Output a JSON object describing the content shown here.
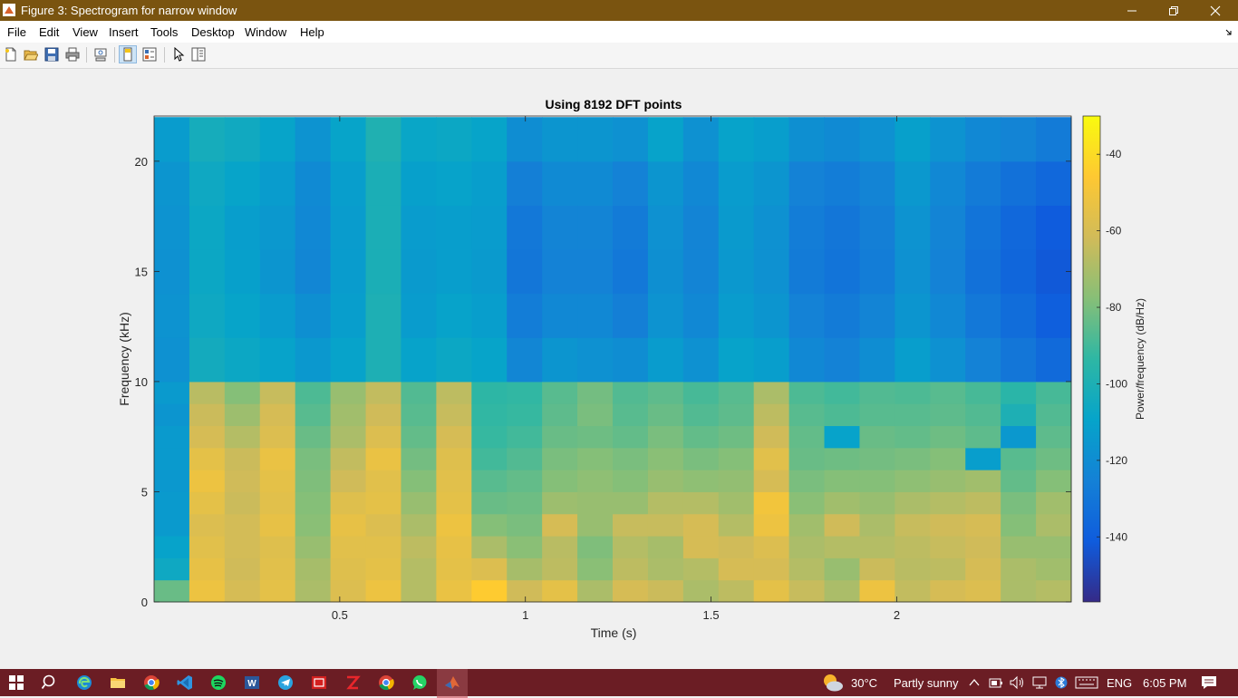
{
  "window": {
    "title": "Figure 3: Spectrogram for narrow window",
    "controls": [
      "minimize",
      "restore",
      "close"
    ]
  },
  "menubar": {
    "items": [
      "File",
      "Edit",
      "View",
      "Insert",
      "Tools",
      "Desktop",
      "Window",
      "Help"
    ]
  },
  "toolbar": {
    "icons": [
      "new-figure-icon",
      "open-file-icon",
      "save-icon",
      "print-icon",
      "link-plot-icon",
      "hide-plot-tools-icon",
      "show-plot-tools-icon",
      "edit-plot-pointer-icon",
      "open-property-inspector-icon"
    ]
  },
  "chart_data": {
    "type": "heatmap",
    "title": "Using 8192 DFT points",
    "xlabel": "Time (s)",
    "ylabel": "Frequency (kHz)",
    "colorbar_label": "Power/frequency (dB/Hz)",
    "xlim": [
      0.0,
      2.47
    ],
    "ylim": [
      0,
      22.05
    ],
    "xticks": [
      0.5,
      1,
      1.5,
      2
    ],
    "xtick_labels": [
      "0.5",
      "1",
      "1.5",
      "2"
    ],
    "yticks": [
      0,
      5,
      10,
      15,
      20
    ],
    "ytick_labels": [
      "0",
      "5",
      "10",
      "15",
      "20"
    ],
    "clim": [
      -157,
      -30
    ],
    "cticks": [
      -40,
      -60,
      -80,
      -100,
      -120,
      -140
    ],
    "ctick_labels": [
      "-40",
      "-60",
      "-80",
      "-100",
      "-120",
      "-140"
    ],
    "colormap": "parula",
    "time_frames": [
      0.0475,
      0.1425,
      0.2375,
      0.3325,
      0.4275,
      0.5225,
      0.6175,
      0.7125,
      0.8075,
      0.9025,
      0.9975,
      1.0925,
      1.1875,
      1.2825,
      1.3775,
      1.4725,
      1.5675,
      1.6625,
      1.7575,
      1.8525,
      1.9475,
      2.0425,
      2.1375,
      2.2325,
      2.3275,
      2.4225
    ],
    "frequency_bands_khz": [
      "0-1",
      "1-2",
      "2-3",
      "3-4",
      "4-5",
      "5-6",
      "6-7",
      "7-8",
      "8-9",
      "9-10",
      "10-12",
      "12-14",
      "14-16",
      "16-18",
      "18-20",
      "20-22"
    ],
    "power_db": [
      [
        -83,
        -106,
        -110,
        -114,
        -114,
        -115,
        -114,
        -114,
        -116,
        -114,
        -118,
        -117,
        -118,
        -117,
        -116,
        -113
      ],
      [
        -52,
        -54,
        -56,
        -58,
        -55,
        -52,
        -55,
        -60,
        -63,
        -67,
        -104,
        -106,
        -107,
        -107,
        -106,
        -103
      ],
      [
        -60,
        -62,
        -61,
        -61,
        -63,
        -62,
        -63,
        -68,
        -73,
        -78,
        -107,
        -109,
        -111,
        -112,
        -109,
        -105
      ],
      [
        -55,
        -56,
        -57,
        -54,
        -56,
        -55,
        -53,
        -58,
        -60,
        -64,
        -110,
        -113,
        -116,
        -115,
        -113,
        -109
      ],
      [
        -70,
        -71,
        -74,
        -77,
        -78,
        -79,
        -80,
        -83,
        -86,
        -88,
        -115,
        -119,
        -123,
        -122,
        -121,
        -117
      ],
      [
        -58,
        -57,
        -56,
        -54,
        -57,
        -62,
        -65,
        -70,
        -72,
        -74,
        -110,
        -112,
        -113,
        -113,
        -112,
        -109
      ],
      [
        -52,
        -55,
        -56,
        -58,
        -55,
        -56,
        -53,
        -58,
        -62,
        -65,
        -100,
        -100,
        -101,
        -101,
        -101,
        -99
      ],
      [
        -68,
        -68,
        -66,
        -70,
        -74,
        -78,
        -81,
        -84,
        -86,
        -87,
        -110,
        -113,
        -114,
        -113,
        -111,
        -108
      ],
      [
        -53,
        -55,
        -54,
        -52,
        -55,
        -56,
        -57,
        -60,
        -64,
        -66,
        -107,
        -110,
        -112,
        -112,
        -110,
        -107
      ],
      [
        -45,
        -58,
        -70,
        -78,
        -83,
        -86,
        -90,
        -92,
        -93,
        -94,
        -109,
        -112,
        -114,
        -113,
        -112,
        -109
      ],
      [
        -62,
        -71,
        -77,
        -80,
        -82,
        -84,
        -87,
        -90,
        -92,
        -93,
        -123,
        -127,
        -130,
        -129,
        -126,
        -120
      ],
      [
        -55,
        -66,
        -67,
        -60,
        -73,
        -78,
        -80,
        -83,
        -85,
        -86,
        -116,
        -122,
        -125,
        -124,
        -121,
        -116
      ],
      [
        -70,
        -77,
        -79,
        -74,
        -74,
        -76,
        -78,
        -82,
        -80,
        -81,
        -118,
        -122,
        -125,
        -124,
        -121,
        -116
      ],
      [
        -60,
        -66,
        -68,
        -64,
        -74,
        -78,
        -80,
        -84,
        -86,
        -87,
        -120,
        -126,
        -129,
        -128,
        -125,
        -118
      ],
      [
        -63,
        -70,
        -71,
        -64,
        -68,
        -74,
        -77,
        -80,
        -83,
        -85,
        -113,
        -117,
        -119,
        -118,
        -116,
        -110
      ],
      [
        -70,
        -68,
        -60,
        -60,
        -68,
        -76,
        -80,
        -84,
        -87,
        -89,
        -118,
        -122,
        -124,
        -124,
        -122,
        -118
      ],
      [
        -66,
        -60,
        -62,
        -68,
        -72,
        -75,
        -78,
        -82,
        -85,
        -86,
        -110,
        -113,
        -115,
        -114,
        -113,
        -110
      ],
      [
        -55,
        -60,
        -58,
        -52,
        -50,
        -60,
        -56,
        -62,
        -66,
        -70,
        -112,
        -116,
        -118,
        -118,
        -116,
        -112
      ],
      [
        -64,
        -68,
        -70,
        -72,
        -77,
        -80,
        -83,
        -84,
        -86,
        -88,
        -122,
        -125,
        -128,
        -127,
        -125,
        -119
      ],
      [
        -70,
        -74,
        -68,
        -62,
        -72,
        -78,
        -82,
        -110,
        -88,
        -90,
        -125,
        -128,
        -131,
        -130,
        -127,
        -121
      ],
      [
        -52,
        -63,
        -68,
        -70,
        -74,
        -78,
        -81,
        -83,
        -86,
        -87,
        -120,
        -124,
        -127,
        -126,
        -124,
        -118
      ],
      [
        -65,
        -67,
        -66,
        -64,
        -70,
        -76,
        -80,
        -84,
        -86,
        -88,
        -112,
        -116,
        -118,
        -117,
        -115,
        -111
      ],
      [
        -60,
        -66,
        -64,
        -62,
        -68,
        -74,
        -78,
        -82,
        -85,
        -86,
        -118,
        -122,
        -125,
        -124,
        -122,
        -117
      ],
      [
        -58,
        -60,
        -62,
        -60,
        -66,
        -72,
        -112,
        -85,
        -87,
        -89,
        -125,
        -129,
        -132,
        -131,
        -128,
        -122
      ],
      [
        -70,
        -70,
        -74,
        -78,
        -80,
        -84,
        -86,
        -115,
        -100,
        -95,
        -130,
        -134,
        -137,
        -136,
        -132,
        -124
      ],
      [
        -68,
        -72,
        -74,
        -70,
        -72,
        -78,
        -82,
        -85,
        -87,
        -89,
        -135,
        -140,
        -142,
        -141,
        -136,
        -128
      ]
    ]
  },
  "taskbar": {
    "weather_temp": "30°C",
    "weather_text": "Partly sunny",
    "language": "ENG",
    "time": "6:05 PM",
    "apps": [
      "edge-icon",
      "file-explorer-icon",
      "chrome-icon",
      "vscode-icon",
      "spotify-icon",
      "word-icon",
      "telegram-icon",
      "app-red-icon",
      "app-z-icon",
      "chrome-icon",
      "whatsapp-icon",
      "matlab-icon"
    ]
  }
}
